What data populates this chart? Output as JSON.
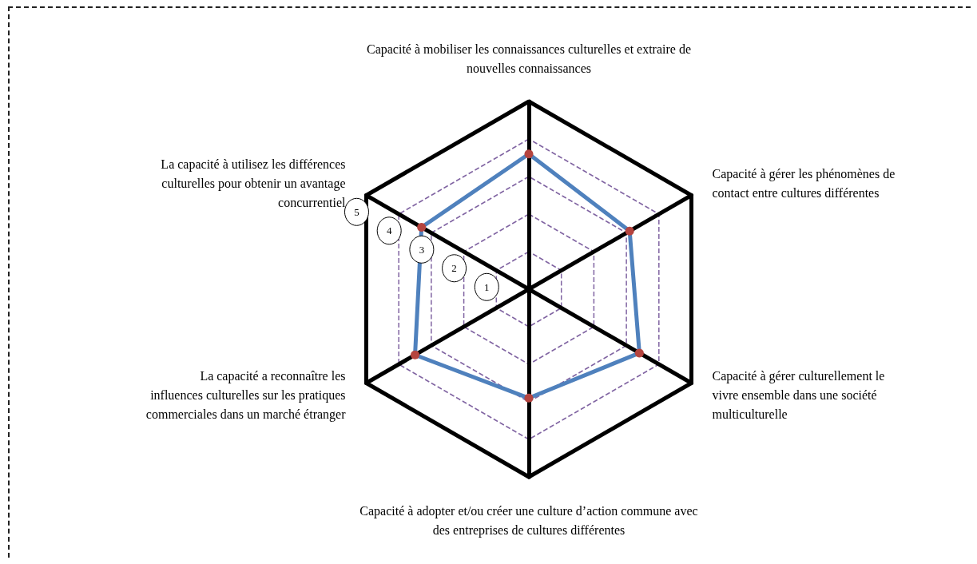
{
  "chart_data": {
    "type": "radar",
    "categories": [
      "Capacité à mobiliser les connaissances culturelles et extraire de nouvelles connaissances",
      "Capacité à gérer les phénomènes de contact entre cultures différentes",
      "Capacité à gérer culturellement le vivre ensemble dans une société multiculturelle",
      "Capacité à adopter et/ou créer une culture d’action commune avec des entreprises de cultures différentes",
      "La capacité a reconnaître les influences culturelles sur les pratiques commerciales dans un marché étranger",
      "La capacité à utilisez les différences culturelles pour obtenir un avantage concurrentiel"
    ],
    "series": [
      {
        "color": "#4f81bd",
        "values": [
          3.6,
          3.1,
          3.4,
          2.9,
          3.5,
          3.3
        ]
      }
    ],
    "ylim": [
      0,
      5
    ],
    "yticks": [
      1,
      2,
      3,
      4,
      5
    ],
    "marker": "circle",
    "line_style": "solid"
  }
}
